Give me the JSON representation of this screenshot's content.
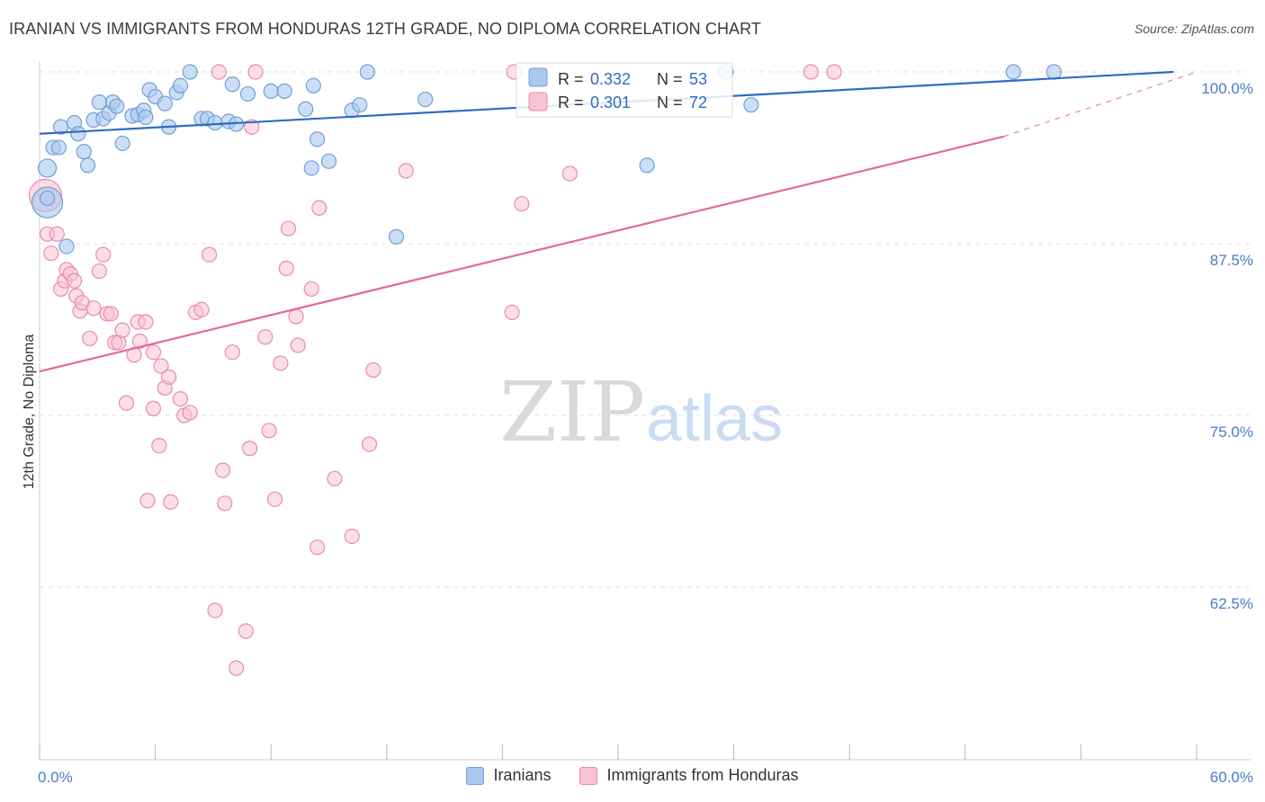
{
  "title": "IRANIAN VS IMMIGRANTS FROM HONDURAS 12TH GRADE, NO DIPLOMA CORRELATION CHART",
  "source": "Source: ZipAtlas.com",
  "watermark": {
    "zip": "ZIP",
    "atlas": "atlas"
  },
  "colors": {
    "blue_fill": "#aac8ee",
    "blue_stroke": "#6f9fd8",
    "blue_line": "#2f6cc3",
    "pink_fill": "#f7c3d3",
    "pink_stroke": "#e98aab",
    "pink_line": "#e26a93",
    "tick_text": "#4a7cc7",
    "grid": "#e2e2e2"
  },
  "chart_data": {
    "type": "scatter",
    "title": "IRANIAN VS IMMIGRANTS FROM HONDURAS 12TH GRADE, NO DIPLOMA CORRELATION CHART",
    "xlabel": "",
    "ylabel": "12th Grade, No Diploma",
    "xlim": [
      0,
      60
    ],
    "ylim": [
      50,
      102
    ],
    "x_tick_labels": [
      "0.0%",
      "60.0%"
    ],
    "y_ticks": [
      100,
      87.5,
      75,
      62.5
    ],
    "y_tick_labels": [
      "100.0%",
      "87.5%",
      "75.0%",
      "62.5%"
    ],
    "legend": [
      {
        "name": "Iranians",
        "r_label": "R = ",
        "r_value": "0.332",
        "n_label": "N = ",
        "n_value": "53"
      },
      {
        "name": "Immigrants from Honduras",
        "r_label": "R = ",
        "r_value": "0.301",
        "n_label": "N = ",
        "n_value": "72"
      }
    ],
    "series": [
      {
        "name": "Iranians",
        "color": "#aac8ee",
        "trend": {
          "x0": 0,
          "y0": 95.5,
          "x1": 58.8,
          "y1": 100.0
        },
        "points": [
          [
            0.4,
            90.5
          ],
          [
            0.4,
            93.0
          ],
          [
            0.7,
            94.5
          ],
          [
            1.0,
            94.5
          ],
          [
            1.1,
            96.0
          ],
          [
            1.4,
            87.3
          ],
          [
            1.8,
            96.3
          ],
          [
            2.0,
            95.5
          ],
          [
            2.3,
            94.2
          ],
          [
            2.5,
            93.2
          ],
          [
            2.8,
            96.5
          ],
          [
            3.1,
            97.8
          ],
          [
            3.3,
            96.6
          ],
          [
            3.6,
            97.0
          ],
          [
            3.8,
            97.8
          ],
          [
            4.0,
            97.5
          ],
          [
            4.3,
            94.8
          ],
          [
            4.8,
            96.8
          ],
          [
            5.1,
            96.9
          ],
          [
            5.4,
            97.2
          ],
          [
            5.5,
            96.7
          ],
          [
            5.7,
            98.7
          ],
          [
            6.0,
            98.2
          ],
          [
            6.5,
            97.7
          ],
          [
            6.7,
            96.0
          ],
          [
            7.1,
            98.5
          ],
          [
            7.3,
            99.0
          ],
          [
            7.8,
            100.0
          ],
          [
            8.4,
            96.6
          ],
          [
            8.7,
            96.6
          ],
          [
            9.1,
            96.3
          ],
          [
            9.8,
            96.4
          ],
          [
            10.0,
            99.1
          ],
          [
            10.2,
            96.2
          ],
          [
            10.8,
            98.4
          ],
          [
            12.0,
            98.6
          ],
          [
            12.7,
            98.6
          ],
          [
            13.8,
            97.3
          ],
          [
            14.1,
            93.0
          ],
          [
            14.2,
            99.0
          ],
          [
            14.4,
            95.1
          ],
          [
            15.0,
            93.5
          ],
          [
            16.2,
            97.2
          ],
          [
            16.6,
            97.6
          ],
          [
            17.0,
            100.0
          ],
          [
            18.5,
            88.0
          ],
          [
            20.0,
            98.0
          ],
          [
            31.5,
            93.2
          ],
          [
            35.6,
            100.0
          ],
          [
            36.9,
            97.6
          ],
          [
            50.5,
            100.0
          ],
          [
            52.6,
            100.0
          ],
          [
            0.4,
            90.8
          ]
        ]
      },
      {
        "name": "Immigrants from Honduras",
        "color": "#f7c3d3",
        "trend": {
          "x0": 0,
          "y0": 78.2,
          "x1": 50.0,
          "y1": 95.3
        },
        "trend_dashed": {
          "x0": 50.0,
          "y0": 95.3,
          "x1": 60.0,
          "y1": 100.0
        },
        "points": [
          [
            0.3,
            91.0
          ],
          [
            0.4,
            88.2
          ],
          [
            0.6,
            86.8
          ],
          [
            0.9,
            88.2
          ],
          [
            1.1,
            84.2
          ],
          [
            1.3,
            84.8
          ],
          [
            1.4,
            85.6
          ],
          [
            1.6,
            85.3
          ],
          [
            1.8,
            84.8
          ],
          [
            1.9,
            83.7
          ],
          [
            2.1,
            82.6
          ],
          [
            2.2,
            83.2
          ],
          [
            2.6,
            80.6
          ],
          [
            2.8,
            82.8
          ],
          [
            3.1,
            85.5
          ],
          [
            3.3,
            86.7
          ],
          [
            3.5,
            82.4
          ],
          [
            3.7,
            82.4
          ],
          [
            3.9,
            80.3
          ],
          [
            4.1,
            80.3
          ],
          [
            4.3,
            81.2
          ],
          [
            4.5,
            75.9
          ],
          [
            4.9,
            79.4
          ],
          [
            5.1,
            81.8
          ],
          [
            5.2,
            80.4
          ],
          [
            5.5,
            81.8
          ],
          [
            5.6,
            68.8
          ],
          [
            5.9,
            79.6
          ],
          [
            5.9,
            75.5
          ],
          [
            6.2,
            72.8
          ],
          [
            6.3,
            78.6
          ],
          [
            6.5,
            77.0
          ],
          [
            6.7,
            77.8
          ],
          [
            6.8,
            68.7
          ],
          [
            7.3,
            76.2
          ],
          [
            7.5,
            75.0
          ],
          [
            7.8,
            75.2
          ],
          [
            8.1,
            82.5
          ],
          [
            8.8,
            86.7
          ],
          [
            8.4,
            82.7
          ],
          [
            9.1,
            60.8
          ],
          [
            9.5,
            71.0
          ],
          [
            9.6,
            68.6
          ],
          [
            9.3,
            100.0
          ],
          [
            10.0,
            79.6
          ],
          [
            10.7,
            59.3
          ],
          [
            10.2,
            56.6
          ],
          [
            10.9,
            72.6
          ],
          [
            11.0,
            96.0
          ],
          [
            11.2,
            100.0
          ],
          [
            11.7,
            80.7
          ],
          [
            11.9,
            73.9
          ],
          [
            12.2,
            68.9
          ],
          [
            12.5,
            78.8
          ],
          [
            12.8,
            85.7
          ],
          [
            12.9,
            88.6
          ],
          [
            13.3,
            82.2
          ],
          [
            13.4,
            80.1
          ],
          [
            14.1,
            84.2
          ],
          [
            14.4,
            65.4
          ],
          [
            14.5,
            90.1
          ],
          [
            15.3,
            70.4
          ],
          [
            16.2,
            66.2
          ],
          [
            17.1,
            72.9
          ],
          [
            17.3,
            78.3
          ],
          [
            19.0,
            92.8
          ],
          [
            24.5,
            82.5
          ],
          [
            25.0,
            90.4
          ],
          [
            27.5,
            92.6
          ],
          [
            40.0,
            100.0
          ],
          [
            41.2,
            100.0
          ],
          [
            24.6,
            100.0
          ]
        ]
      }
    ]
  }
}
